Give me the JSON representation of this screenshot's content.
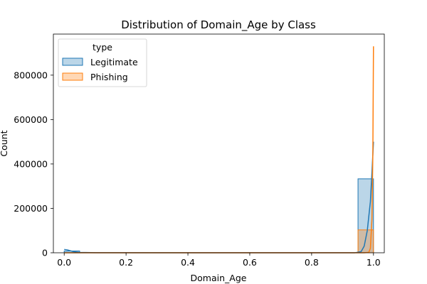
{
  "chart_data": {
    "type": "histogram",
    "title": "Distribution of Domain_Age by Class",
    "xlabel": "Domain_Age",
    "ylabel": "Count",
    "xlim": [
      -0.035,
      1.035
    ],
    "ylim": [
      0,
      985000
    ],
    "x_ticks": [
      0.0,
      0.2,
      0.4,
      0.6,
      0.8,
      1.0
    ],
    "x_tick_labels": [
      "0.0",
      "0.2",
      "0.4",
      "0.6",
      "0.8",
      "1.0"
    ],
    "y_ticks": [
      0,
      200000,
      400000,
      600000,
      800000
    ],
    "y_tick_labels": [
      "0",
      "200000",
      "400000",
      "600000",
      "800000"
    ],
    "grid": false,
    "legend": {
      "title": "type",
      "placement": "top-left",
      "entries": [
        "Legitimate",
        "Phishing"
      ]
    },
    "series": [
      {
        "name": "Legitimate",
        "color": "#1f77b4",
        "bins": [
          {
            "x0": 0.0,
            "x1": 0.05,
            "count": 8000
          },
          {
            "x0": 0.95,
            "x1": 1.0,
            "count": 333000
          }
        ],
        "kde": [
          [
            0.0,
            15000
          ],
          [
            0.01,
            13000
          ],
          [
            0.03,
            5000
          ],
          [
            0.05,
            1500
          ],
          [
            0.1,
            300
          ],
          [
            0.5,
            0
          ],
          [
            0.9,
            0
          ],
          [
            0.94,
            200
          ],
          [
            0.96,
            5000
          ],
          [
            0.97,
            30000
          ],
          [
            0.98,
            100000
          ],
          [
            0.99,
            230000
          ],
          [
            0.995,
            360000
          ],
          [
            1.0,
            500000
          ]
        ]
      },
      {
        "name": "Phishing",
        "color": "#ff7f0e",
        "bins": [
          {
            "x0": 0.95,
            "x1": 1.0,
            "count": 103000
          }
        ],
        "kde": [
          [
            0.0,
            0
          ],
          [
            0.5,
            0
          ],
          [
            0.97,
            0
          ],
          [
            0.985,
            2000
          ],
          [
            0.99,
            20000
          ],
          [
            0.995,
            150000
          ],
          [
            0.998,
            450000
          ],
          [
            1.0,
            930000
          ]
        ]
      }
    ]
  }
}
